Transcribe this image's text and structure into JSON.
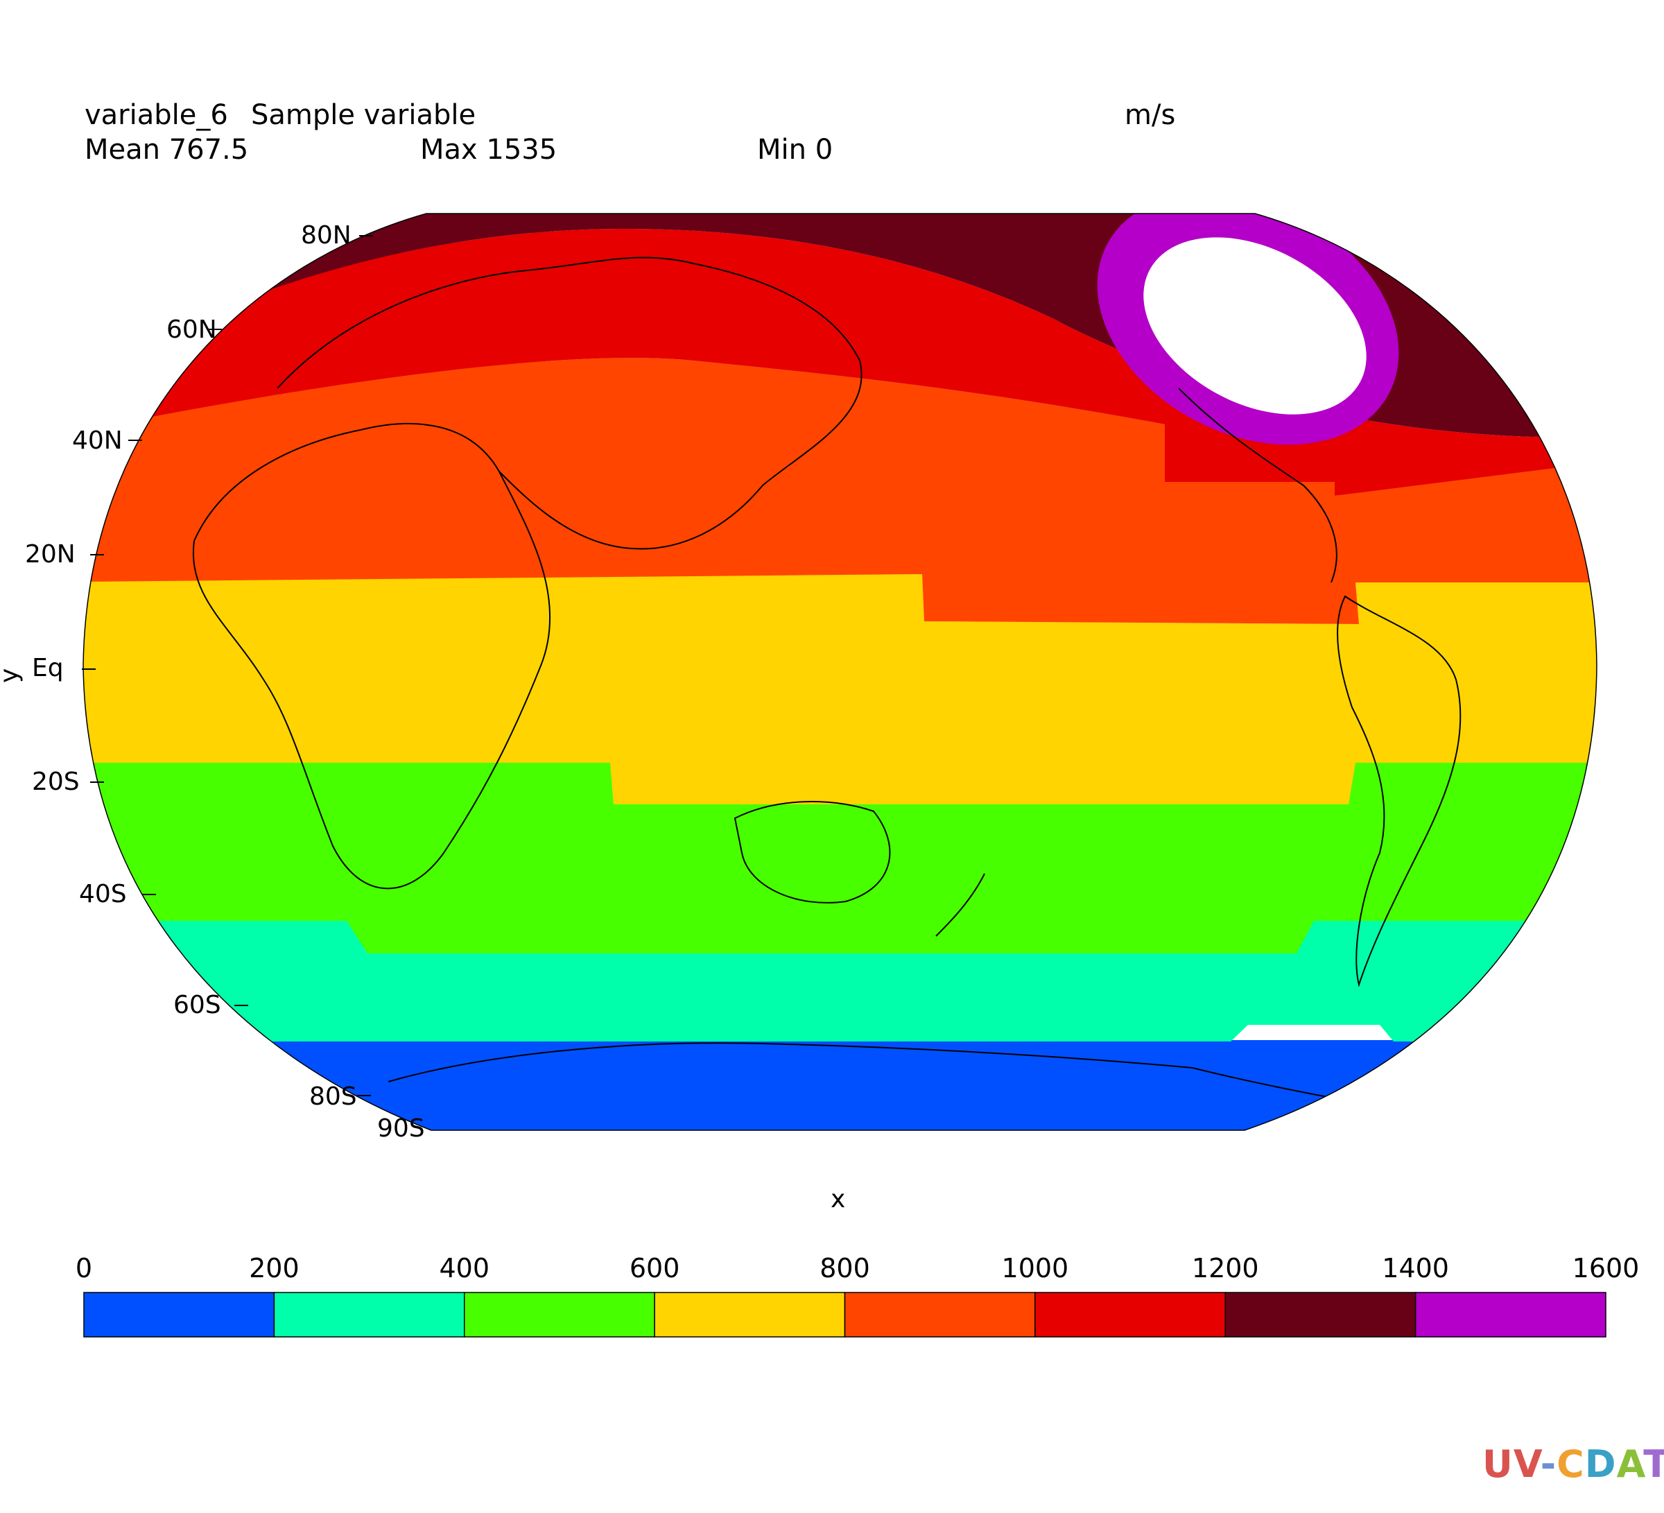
{
  "header": {
    "variable_name": "variable_6",
    "long_name": "Sample variable",
    "units": "m/s",
    "mean": "Mean 767.5",
    "max": "Max 1535",
    "min": "Min 0"
  },
  "axes": {
    "xlabel": "x",
    "ylabel": "y",
    "lat_ticks": [
      "80N",
      "60N",
      "40N",
      "20N",
      "Eq",
      "20S",
      "40S",
      "60S",
      "80S",
      "90S"
    ]
  },
  "colorbar": {
    "levels": [
      "0",
      "200",
      "400",
      "600",
      "800",
      "1000",
      "1200",
      "1400",
      "1600"
    ],
    "colors": [
      "#0050ff",
      "#00ffaa",
      "#48ff00",
      "#ffd400",
      "#ff4500",
      "#e60000",
      "#680016",
      "#b400c8"
    ]
  },
  "map": {
    "projection": "robinson",
    "fill_colors": {
      "band_0_200": "#0050ff",
      "band_200_400": "#00ffaa",
      "band_400_600": "#48ff00",
      "band_600_800": "#ffd400",
      "band_800_1000": "#ff4500",
      "band_1000_1200": "#e60000",
      "band_1200_1400": "#680016",
      "band_1400_1600": "#b400c8",
      "above_max": "#ffffff"
    }
  },
  "logo": {
    "parts": [
      "UV",
      "-",
      "C",
      "D",
      "A",
      "T"
    ]
  }
}
